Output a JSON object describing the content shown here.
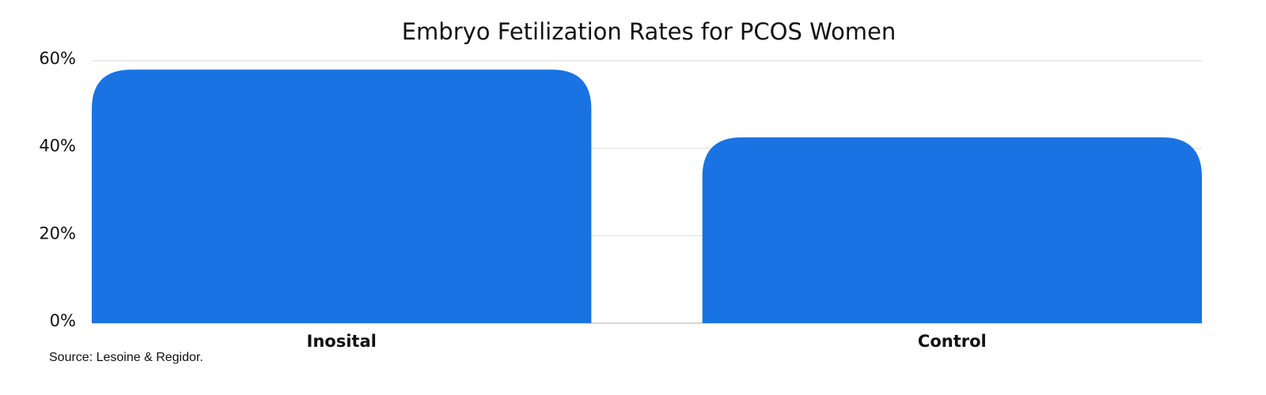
{
  "chart_data": {
    "type": "bar",
    "title": "Embryo Fetilization Rates for PCOS Women",
    "categories": [
      "Inosital",
      "Control"
    ],
    "values": [
      58,
      42.5
    ],
    "color": "#1a73e3",
    "ylim": [
      0,
      60
    ],
    "yticks": [
      {
        "value": 0,
        "label": "0%"
      },
      {
        "value": 20,
        "label": "20%"
      },
      {
        "value": 40,
        "label": "40%"
      },
      {
        "value": 60,
        "label": "60%"
      }
    ],
    "grid": true,
    "source": "Source: Lesoine & Regidor."
  }
}
